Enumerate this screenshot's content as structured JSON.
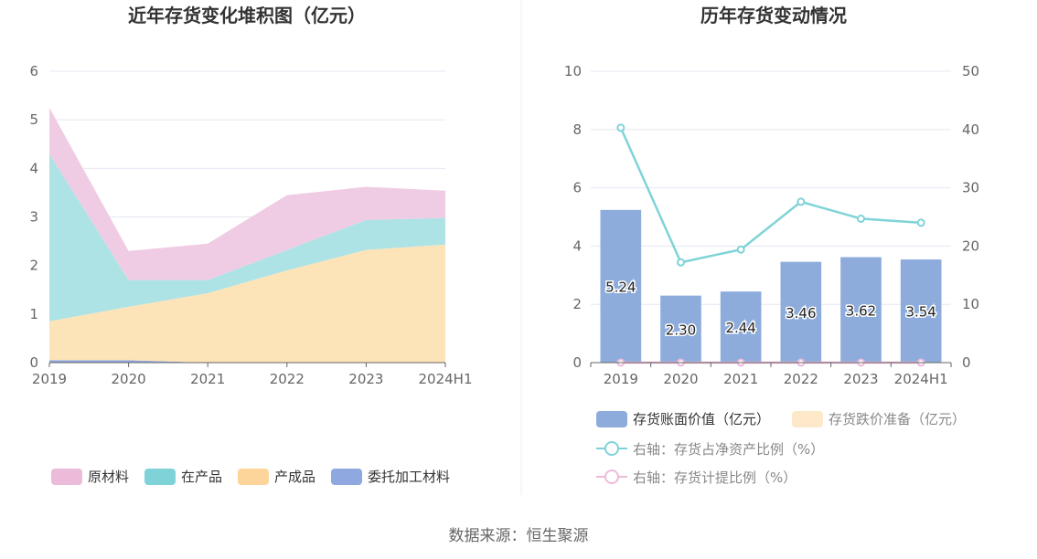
{
  "page": {
    "source_text": "数据来源：恒生聚源"
  },
  "chart_data": [
    {
      "type": "area",
      "stacked": true,
      "title": "近年存货变化堆积图（亿元）",
      "categories": [
        "2019",
        "2020",
        "2021",
        "2022",
        "2023",
        "2024H1"
      ],
      "ylim": [
        0,
        6
      ],
      "yticks": [
        "0",
        "1",
        "2",
        "3",
        "4",
        "5",
        "6"
      ],
      "grid": true,
      "legend_position": "bottom",
      "series": [
        {
          "name": "委托加工材料",
          "color": "#8fa8e0",
          "values": [
            0.05,
            0.05,
            0.0,
            0.0,
            0.0,
            0.0
          ]
        },
        {
          "name": "产成品",
          "color": "#fde3b8",
          "values": [
            0.8,
            1.1,
            1.43,
            1.9,
            2.32,
            2.43
          ]
        },
        {
          "name": "在产品",
          "color": "#aee3e6",
          "values": [
            3.45,
            0.55,
            0.27,
            0.42,
            0.62,
            0.55
          ]
        },
        {
          "name": "原材料",
          "color": "#f0cce4",
          "values": [
            0.95,
            0.6,
            0.75,
            1.13,
            0.68,
            0.56
          ]
        }
      ],
      "legend_order": [
        {
          "name": "原材料",
          "color": "#ecbbd9"
        },
        {
          "name": "在产品",
          "color": "#7fd3d8"
        },
        {
          "name": "产成品",
          "color": "#fdd59b"
        },
        {
          "name": "委托加工材料",
          "color": "#8fa8e0"
        }
      ]
    },
    {
      "type": "bar",
      "title": "历年存货变动情况",
      "categories": [
        "2019",
        "2020",
        "2021",
        "2022",
        "2023",
        "2024H1"
      ],
      "ylim": [
        0,
        10
      ],
      "yticks": [
        "0",
        "2",
        "4",
        "6",
        "8",
        "10"
      ],
      "y2lim": [
        0,
        50
      ],
      "y2ticks": [
        "0",
        "10",
        "20",
        "30",
        "40",
        "50"
      ],
      "grid": true,
      "legend_position": "bottom",
      "bars": {
        "name": "存货账面价值（亿元）",
        "color": "#8dacdc",
        "values": [
          5.24,
          2.3,
          2.44,
          3.46,
          3.62,
          3.54
        ],
        "labels": [
          "5.24",
          "2.30",
          "2.44",
          "3.46",
          "3.62",
          "3.54"
        ]
      },
      "reserve": {
        "name": "存货跌价准备（亿元）",
        "color": "#fde9c9",
        "values": [
          0,
          0,
          0,
          0,
          0,
          0
        ]
      },
      "lines": [
        {
          "name": "右轴：存货占净资产比例（%）",
          "color": "#7fd3d8",
          "axis": "right",
          "values": [
            40.3,
            17.2,
            19.4,
            27.6,
            24.7,
            24.0
          ]
        },
        {
          "name": "右轴：存货计提比例（%）",
          "color": "#ecbbd9",
          "axis": "right",
          "values": [
            0,
            0,
            0,
            0,
            0,
            0
          ]
        }
      ]
    }
  ]
}
